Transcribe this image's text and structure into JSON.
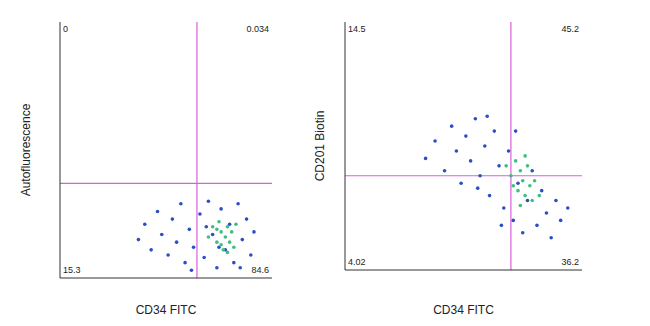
{
  "chart_data": [
    {
      "type": "scatter",
      "x_label": "CD34 FITC",
      "y_label": "Autofluorescence",
      "xlim": [
        0,
        1000
      ],
      "ylim": [
        0,
        1000
      ],
      "tick_labels": false,
      "quadrant_gate": {
        "x": 646,
        "y": 370
      },
      "quadrant_labels": {
        "top_left": "0",
        "top_right": "0.034",
        "bottom_left": "15.3",
        "bottom_right": "84.6"
      },
      "series": [
        {
          "color": "#2a4fc4",
          "x": [
            370,
            400,
            430,
            460,
            480,
            510,
            530,
            550,
            570,
            590,
            610,
            630,
            660,
            680,
            700,
            720,
            740,
            760,
            780,
            800,
            820,
            840,
            860,
            880,
            900,
            915,
            690,
            750,
            850,
            620
          ],
          "y": [
            150,
            210,
            110,
            260,
            170,
            90,
            230,
            140,
            290,
            60,
            190,
            120,
            250,
            80,
            300,
            170,
            40,
            270,
            110,
            210,
            60,
            290,
            150,
            230,
            90,
            180,
            200,
            120,
            40,
            30
          ]
        },
        {
          "color": "#3fbf7f",
          "x": [
            700,
            720,
            740,
            750,
            760,
            770,
            780,
            790,
            800,
            810,
            820,
            830,
            760,
            740,
            790
          ],
          "y": [
            160,
            200,
            140,
            220,
            180,
            110,
            160,
            200,
            140,
            180,
            120,
            210,
            130,
            190,
            100
          ]
        }
      ]
    },
    {
      "type": "scatter",
      "x_label": "CD34 FITC",
      "y_label": "CD201 Biotin",
      "xlim": [
        0,
        1000
      ],
      "ylim": [
        0,
        1000
      ],
      "tick_labels": false,
      "quadrant_gate": {
        "x": 700,
        "y": 380
      },
      "quadrant_labels": {
        "top_left": "14.5",
        "top_right": "45.2",
        "bottom_left": "4.02",
        "bottom_right": "36.2"
      },
      "series": [
        {
          "color": "#2a4fc4",
          "x": [
            340,
            380,
            420,
            450,
            470,
            490,
            510,
            530,
            550,
            570,
            590,
            610,
            630,
            650,
            670,
            690,
            710,
            730,
            750,
            770,
            790,
            810,
            830,
            850,
            870,
            890,
            910,
            940,
            600,
            660,
            560,
            720
          ],
          "y": [
            450,
            520,
            400,
            580,
            480,
            350,
            540,
            440,
            610,
            380,
            500,
            300,
            560,
            420,
            250,
            480,
            200,
            350,
            150,
            280,
            400,
            180,
            320,
            230,
            130,
            280,
            200,
            250,
            620,
            180,
            330,
            560
          ]
        },
        {
          "color": "#3fbf7f",
          "x": [
            680,
            700,
            720,
            730,
            740,
            750,
            760,
            770,
            780,
            790,
            800,
            710,
            760,
            820,
            740
          ],
          "y": [
            420,
            380,
            440,
            320,
            400,
            360,
            300,
            420,
            340,
            280,
            360,
            340,
            460,
            300,
            260
          ]
        }
      ]
    }
  ]
}
